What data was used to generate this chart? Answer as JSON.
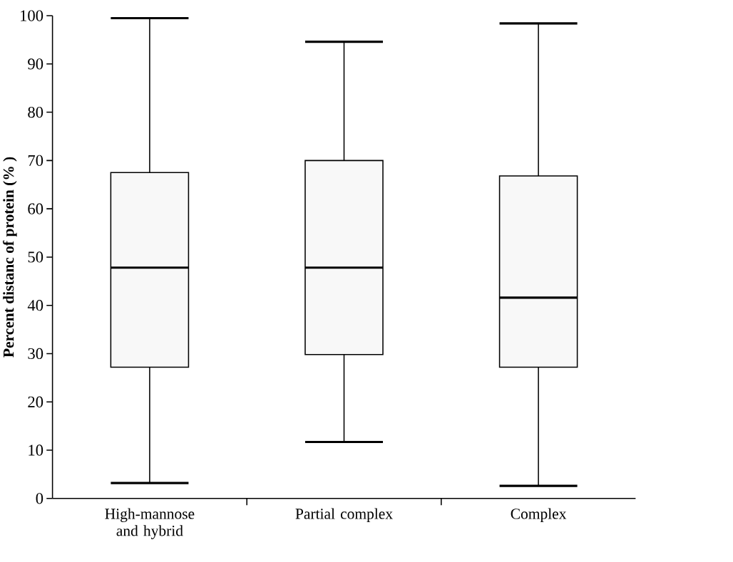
{
  "chart_data": {
    "type": "box",
    "ylabel": "Percent distanc of protein (% )",
    "categories": [
      "High-mannose and hybrid",
      "Partial complex",
      "Complex"
    ],
    "color": "#f8f8f8",
    "boxes": [
      {
        "low": 3.2,
        "q1": 27.2,
        "median": 47.8,
        "q3": 67.5,
        "high": 99.5
      },
      {
        "low": 11.7,
        "q1": 29.8,
        "median": 47.8,
        "q3": 70.0,
        "high": 94.6
      },
      {
        "low": 2.6,
        "q1": 27.2,
        "median": 41.6,
        "q3": 66.8,
        "high": 98.4
      }
    ],
    "ylim": [
      0,
      100
    ],
    "yticks": [
      0,
      10,
      20,
      30,
      40,
      50,
      60,
      70,
      80,
      90,
      100
    ]
  }
}
